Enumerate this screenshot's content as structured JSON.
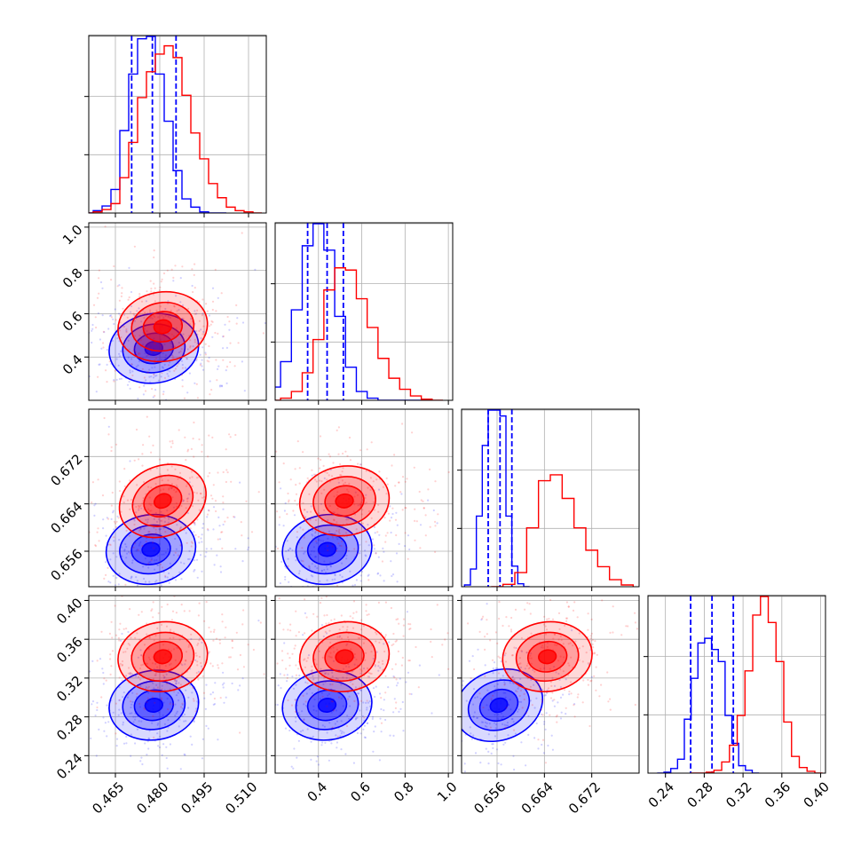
{
  "chart_data": {
    "type": "corner",
    "grid": true,
    "series": [
      {
        "color": "#0000ff",
        "histograms": [
          {
            "x": [
              0.456,
              0.459,
              0.462,
              0.465,
              0.468,
              0.471,
              0.474,
              0.477,
              0.48,
              0.483,
              0.486,
              0.489,
              0.492,
              0.495,
              0.498,
              0.501
            ],
            "counts": [
              0,
              2,
              6,
              20,
              70,
              118,
              148,
              150,
              118,
              78,
              36,
              12,
              5,
              1,
              0,
              0
            ]
          },
          {
            "x": [
              0.15,
              0.2,
              0.25,
              0.3,
              0.35,
              0.4,
              0.45,
              0.5,
              0.55,
              0.6,
              0.65,
              0.7,
              0.75,
              0.8,
              0.85,
              0.9
            ],
            "counts": [
              2,
              12,
              35,
              82,
              140,
              160,
              136,
              76,
              30,
              8,
              2,
              0,
              0,
              0,
              0,
              0
            ]
          },
          {
            "x": [
              0.651,
              0.652,
              0.653,
              0.654,
              0.655,
              0.656,
              0.657,
              0.658,
              0.659,
              0.66,
              0.661
            ],
            "counts": [
              3,
              30,
              120,
              240,
              300,
              300,
              290,
              120,
              35,
              5,
              0
            ]
          },
          {
            "x": [
              0.235,
              0.242,
              0.249,
              0.256,
              0.263,
              0.27,
              0.277,
              0.284,
              0.291,
              0.298,
              0.305,
              0.312,
              0.319,
              0.326,
              0.333
            ],
            "counts": [
              0,
              1,
              5,
              15,
              58,
              102,
              140,
              145,
              133,
              120,
              62,
              32,
              8,
              3,
              0
            ]
          }
        ],
        "quantiles": [
          [
            0.4705,
            0.4775,
            0.4855
          ],
          [
            0.35,
            0.44,
            0.515
          ],
          [
            0.6545,
            0.6565,
            0.6585
          ],
          [
            0.266,
            0.288,
            0.31
          ]
        ],
        "contours_2d": [
          {
            "pair": [
              1,
              0
            ],
            "center": [
              0.478,
              0.44
            ]
          },
          {
            "pair": [
              2,
              0
            ],
            "center": [
              0.477,
              0.6563
            ]
          },
          {
            "pair": [
              2,
              1
            ],
            "center": [
              0.44,
              0.6563
            ]
          },
          {
            "pair": [
              3,
              0
            ],
            "center": [
              0.478,
              0.292
            ]
          },
          {
            "pair": [
              3,
              1
            ],
            "center": [
              0.44,
              0.292
            ]
          },
          {
            "pair": [
              3,
              2
            ],
            "center": [
              0.6563,
              0.292
            ]
          }
        ]
      },
      {
        "color": "#ff0000",
        "histograms": [
          {
            "x": [
              0.456,
              0.459,
              0.462,
              0.465,
              0.468,
              0.471,
              0.474,
              0.477,
              0.48,
              0.483,
              0.486,
              0.489,
              0.492,
              0.495,
              0.498,
              0.501,
              0.504,
              0.507,
              0.51,
              0.513
            ],
            "counts": [
              0,
              1,
              3,
              8,
              30,
              60,
              98,
              120,
              135,
              142,
              132,
              100,
              68,
              46,
              25,
              13,
              5,
              2,
              1,
              0
            ]
          },
          {
            "x": [
              0.15,
              0.2,
              0.25,
              0.3,
              0.35,
              0.4,
              0.45,
              0.5,
              0.55,
              0.6,
              0.65,
              0.7,
              0.75,
              0.8,
              0.85,
              0.9,
              0.95
            ],
            "counts": [
              0,
              0,
              2,
              8,
              25,
              55,
              100,
              120,
              118,
              92,
              66,
              38,
              20,
              10,
              4,
              1,
              0
            ]
          },
          {
            "x": [
              0.656,
              0.658,
              0.66,
              0.662,
              0.664,
              0.666,
              0.668,
              0.67,
              0.672,
              0.674,
              0.676,
              0.678
            ],
            "counts": [
              0,
              4,
              24,
              100,
              180,
              190,
              150,
              100,
              62,
              34,
              12,
              3
            ]
          },
          {
            "x": [
              0.27,
              0.278,
              0.286,
              0.294,
              0.302,
              0.31,
              0.318,
              0.326,
              0.334,
              0.342,
              0.35,
              0.358,
              0.366,
              0.374,
              0.382,
              0.39,
              0.398
            ],
            "counts": [
              0,
              0,
              1,
              3,
              12,
              30,
              62,
              110,
              170,
              190,
              162,
              120,
              55,
              18,
              6,
              2,
              0
            ]
          }
        ],
        "contours_2d": [
          {
            "pair": [
              1,
              0
            ],
            "center": [
              0.481,
              0.54
            ]
          },
          {
            "pair": [
              2,
              0
            ],
            "center": [
              0.481,
              0.6645
            ]
          },
          {
            "pair": [
              2,
              1
            ],
            "center": [
              0.52,
              0.6645
            ]
          },
          {
            "pair": [
              3,
              0
            ],
            "center": [
              0.481,
              0.342
            ]
          },
          {
            "pair": [
              3,
              1
            ],
            "center": [
              0.52,
              0.342
            ]
          },
          {
            "pair": [
              3,
              2
            ],
            "center": [
              0.6645,
              0.342
            ]
          }
        ]
      }
    ],
    "axis_ranges": [
      [
        0.456,
        0.516
      ],
      [
        0.2,
        1.02
      ],
      [
        0.65,
        0.68
      ],
      [
        0.222,
        0.405
      ]
    ],
    "tick_labels": [
      [
        "0.465",
        "0.480",
        "0.495",
        "0.510"
      ],
      [
        "0.4",
        "0.6",
        "0.8",
        "1.0"
      ],
      [
        "0.656",
        "0.664",
        "0.672"
      ],
      [
        "0.24",
        "0.28",
        "0.32",
        "0.36",
        "0.40"
      ]
    ]
  }
}
